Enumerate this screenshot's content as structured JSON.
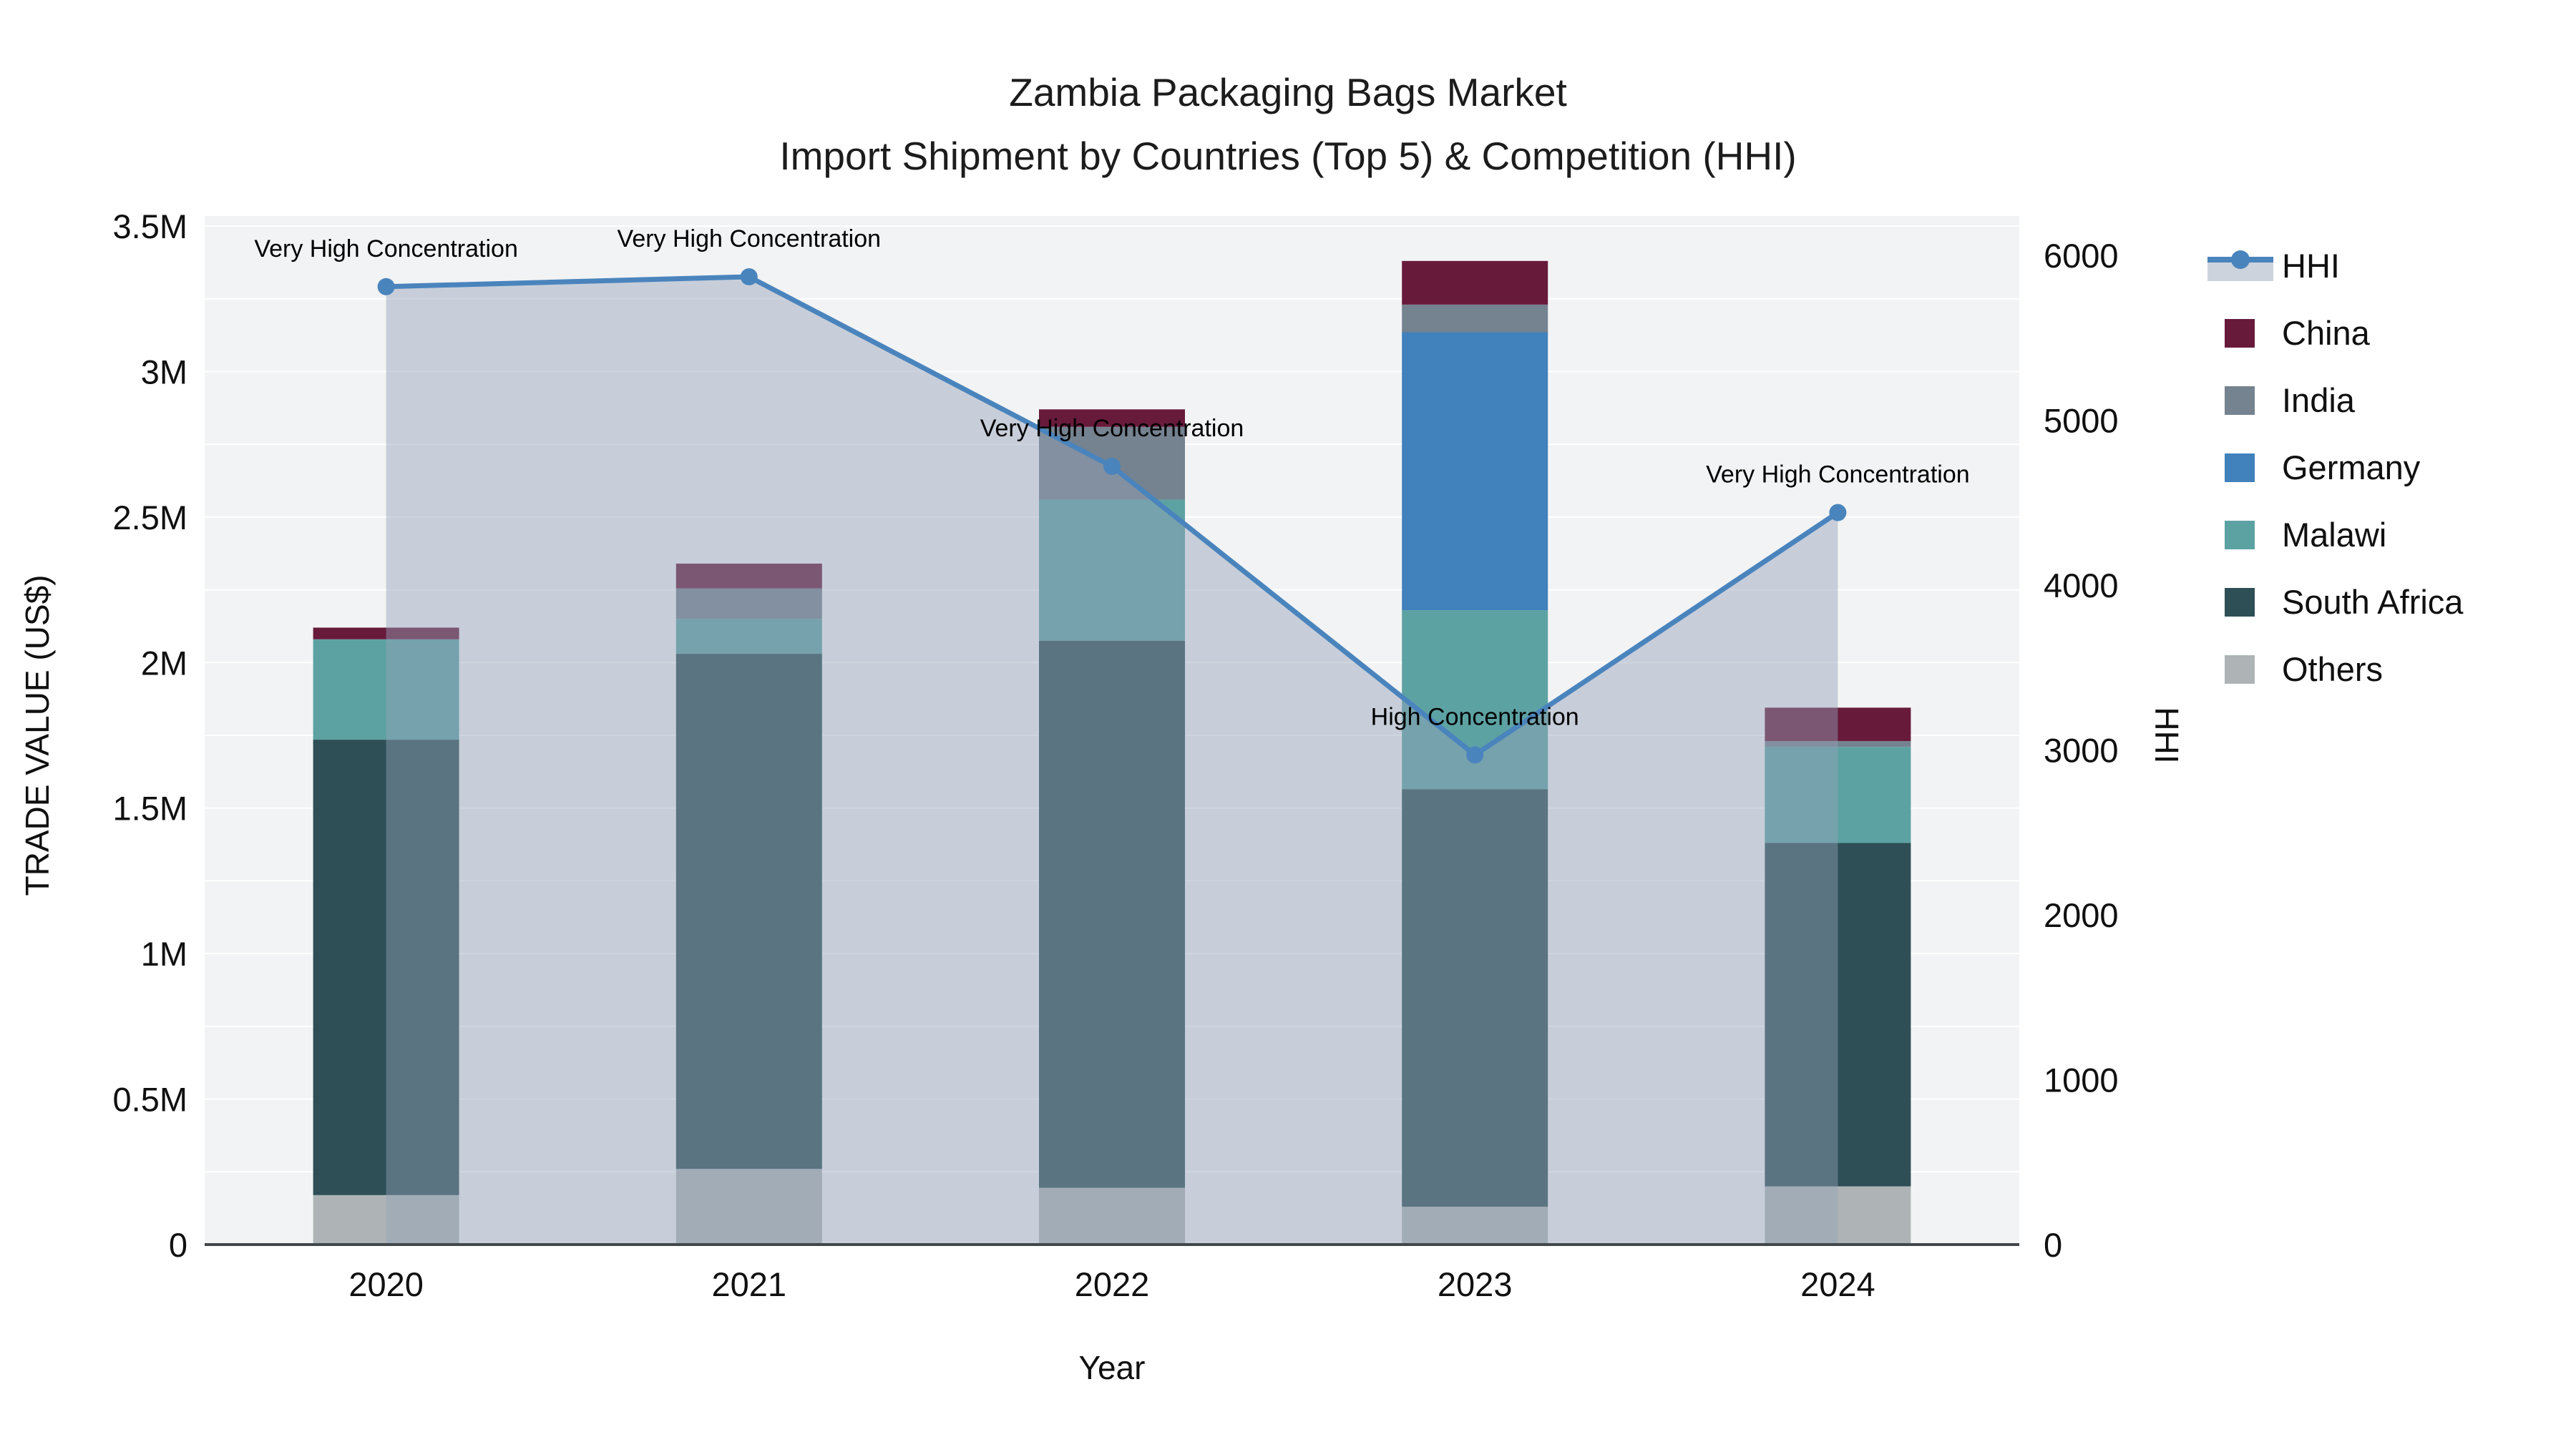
{
  "title": {
    "line1": "Zambia Packaging Bags Market",
    "line2": "Import Shipment by Countries (Top 5) & Competition (HHI)"
  },
  "chart_data": {
    "type": "bar+line",
    "categories": [
      "2020",
      "2021",
      "2022",
      "2023",
      "2024"
    ],
    "stack_note": "stacked bars, US$ trade value, stacking order bottom-to-top",
    "series": [
      {
        "name": "Others",
        "color": "#aeb4b6",
        "values": [
          170000,
          260000,
          195000,
          130000,
          200000
        ]
      },
      {
        "name": "South Africa",
        "color": "#2e4f55",
        "values": [
          1565000,
          1770000,
          1880000,
          1435000,
          1180000
        ]
      },
      {
        "name": "Malawi",
        "color": "#5da2a3",
        "values": [
          345000,
          120000,
          485000,
          615000,
          330000
        ]
      },
      {
        "name": "Germany",
        "color": "#4181bc",
        "values": [
          0,
          0,
          0,
          955000,
          0
        ]
      },
      {
        "name": "India",
        "color": "#75828f",
        "values": [
          0,
          105000,
          250000,
          95000,
          20000
        ]
      },
      {
        "name": "China",
        "color": "#681a3b",
        "values": [
          40000,
          85000,
          60000,
          150000,
          115000
        ]
      }
    ],
    "line_series": {
      "name": "HHI",
      "color": "#4a84bd",
      "area_fill": "rgba(147,161,184,0.45)",
      "values": [
        5810,
        5870,
        4720,
        2970,
        4440
      ]
    },
    "annotations": [
      {
        "category": "2020",
        "text": "Very High Concentration"
      },
      {
        "category": "2021",
        "text": "Very High Concentration"
      },
      {
        "category": "2022",
        "text": "Very High Concentration"
      },
      {
        "category": "2023",
        "text": "High Concentration"
      },
      {
        "category": "2024",
        "text": "Very High Concentration"
      }
    ],
    "xlabel": "Year",
    "ylabel_left": "TRADE VALUE (US$)",
    "ylabel_right": "HHI",
    "ylim_left": [
      0,
      3500000
    ],
    "ylim_right": [
      0,
      6000
    ],
    "yticks_left": [
      {
        "value": 0,
        "label": "0"
      },
      {
        "value": 500000,
        "label": "0.5M"
      },
      {
        "value": 1000000,
        "label": "1M"
      },
      {
        "value": 1500000,
        "label": "1.5M"
      },
      {
        "value": 2000000,
        "label": "2M"
      },
      {
        "value": 2500000,
        "label": "2.5M"
      },
      {
        "value": 3000000,
        "label": "3M"
      },
      {
        "value": 3500000,
        "label": "3.5M"
      }
    ],
    "yticks_right": [
      {
        "value": 0,
        "label": "0"
      },
      {
        "value": 1000,
        "label": "1000"
      },
      {
        "value": 2000,
        "label": "2000"
      },
      {
        "value": 3000,
        "label": "3000"
      },
      {
        "value": 4000,
        "label": "4000"
      },
      {
        "value": 5000,
        "label": "5000"
      },
      {
        "value": 6000,
        "label": "6000"
      }
    ],
    "grid": true,
    "grid_step_left": 250000,
    "legend_position": "right",
    "legend_order": [
      "HHI",
      "China",
      "India",
      "Germany",
      "Malawi",
      "South Africa",
      "Others"
    ]
  },
  "colors": {
    "plot_background": "#f2f3f4",
    "figure_background": "#ffffff",
    "gridline": "#ffffff",
    "axis_line": "#42474c",
    "hhi_legend_band": "#ccd3dd"
  }
}
